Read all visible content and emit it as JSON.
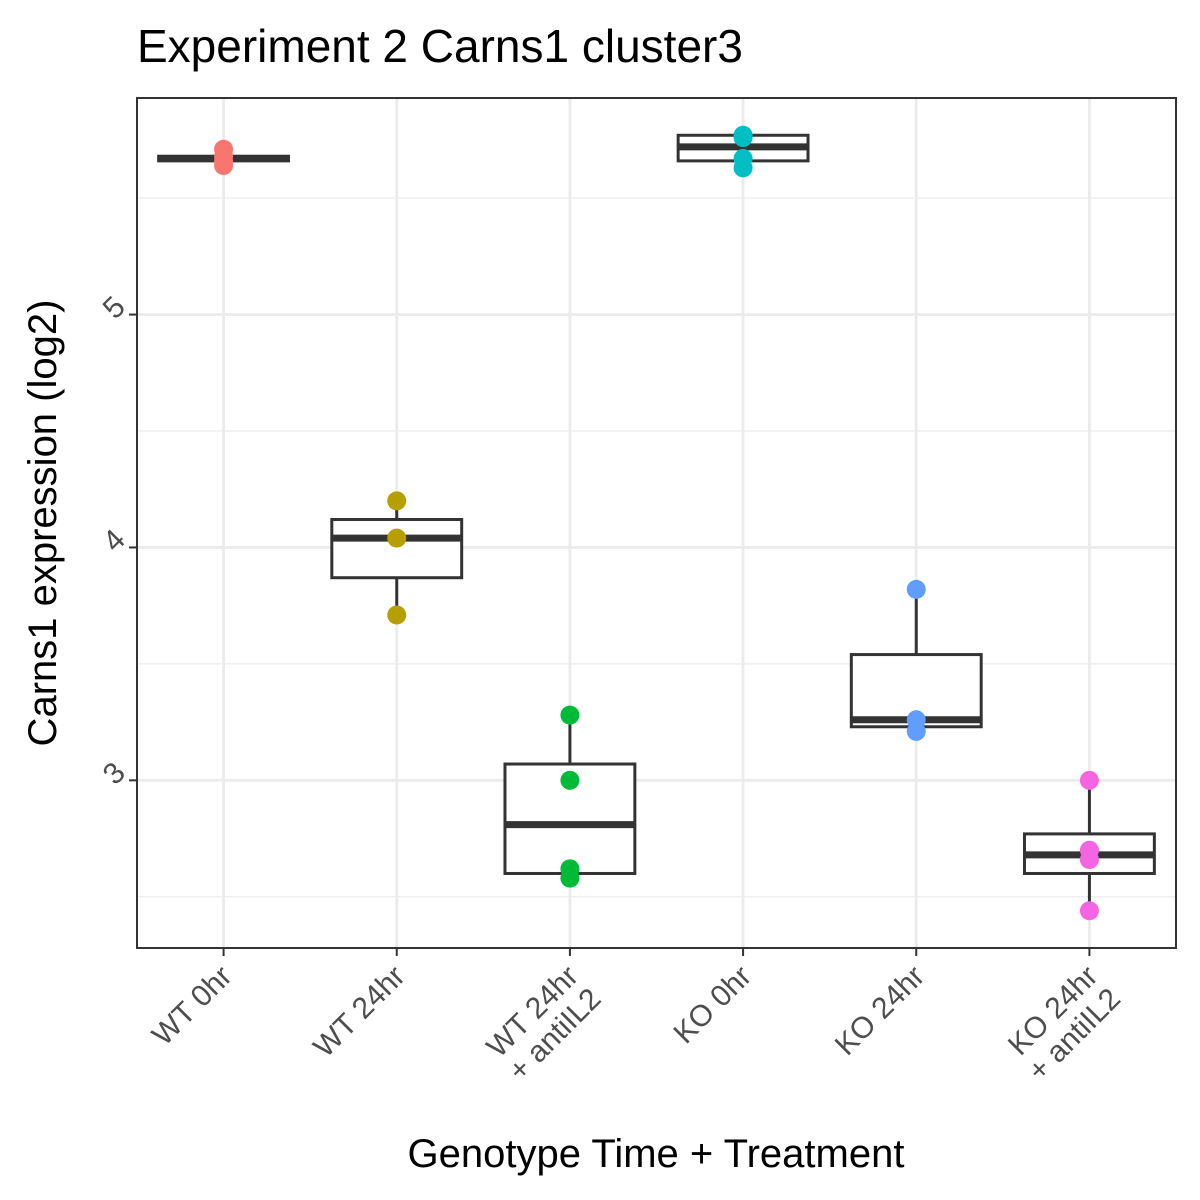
{
  "chart_data": {
    "type": "boxplot",
    "title": "Experiment 2 Carns1 cluster3",
    "xlabel": "Genotype Time + Treatment",
    "ylabel": "Carns1 expression (log2)",
    "ylim": [
      2.28,
      5.93
    ],
    "yticks": [
      3,
      4,
      5
    ],
    "grid": true,
    "legend": "none",
    "categories": [
      {
        "label": [
          "WT 0hr"
        ]
      },
      {
        "label": [
          "WT 24hr"
        ]
      },
      {
        "label": [
          "WT 24hr",
          "+ antiIL2"
        ]
      },
      {
        "label": [
          "KO 0hr"
        ]
      },
      {
        "label": [
          "KO 24hr"
        ]
      },
      {
        "label": [
          "KO 24hr",
          "+ antiIL2"
        ]
      }
    ],
    "groups": [
      {
        "color": "#F8766D",
        "box": {
          "q1": 5.66,
          "median": 5.67,
          "q3": 5.68,
          "whisker_low": 5.66,
          "whisker_high": 5.68
        },
        "points": [
          5.64,
          5.66,
          5.68,
          5.71
        ]
      },
      {
        "color": "#B79F00",
        "box": {
          "q1": 3.87,
          "median": 4.04,
          "q3": 4.12,
          "whisker_low": 3.71,
          "whisker_high": 4.2
        },
        "points": [
          4.2,
          4.04,
          3.71
        ]
      },
      {
        "color": "#00BA38",
        "box": {
          "q1": 2.6,
          "median": 2.81,
          "q3": 3.07,
          "whisker_low": 2.6,
          "whisker_high": 3.28
        },
        "points": [
          3.28,
          3.0,
          2.62,
          2.58
        ]
      },
      {
        "color": "#00BFC4",
        "box": {
          "q1": 5.66,
          "median": 5.72,
          "q3": 5.77,
          "whisker_low": 5.66,
          "whisker_high": 5.77
        },
        "points": [
          5.77,
          5.67,
          5.63,
          5.76
        ]
      },
      {
        "color": "#619CFF",
        "box": {
          "q1": 3.23,
          "median": 3.26,
          "q3": 3.54,
          "whisker_low": 3.23,
          "whisker_high": 3.82
        },
        "points": [
          3.82,
          3.26,
          3.21
        ]
      },
      {
        "color": "#F564E3",
        "box": {
          "q1": 2.6,
          "median": 2.68,
          "q3": 2.77,
          "whisker_low": 2.44,
          "whisker_high": 3.0
        },
        "points": [
          3.0,
          2.7,
          2.66,
          2.44
        ]
      }
    ]
  }
}
